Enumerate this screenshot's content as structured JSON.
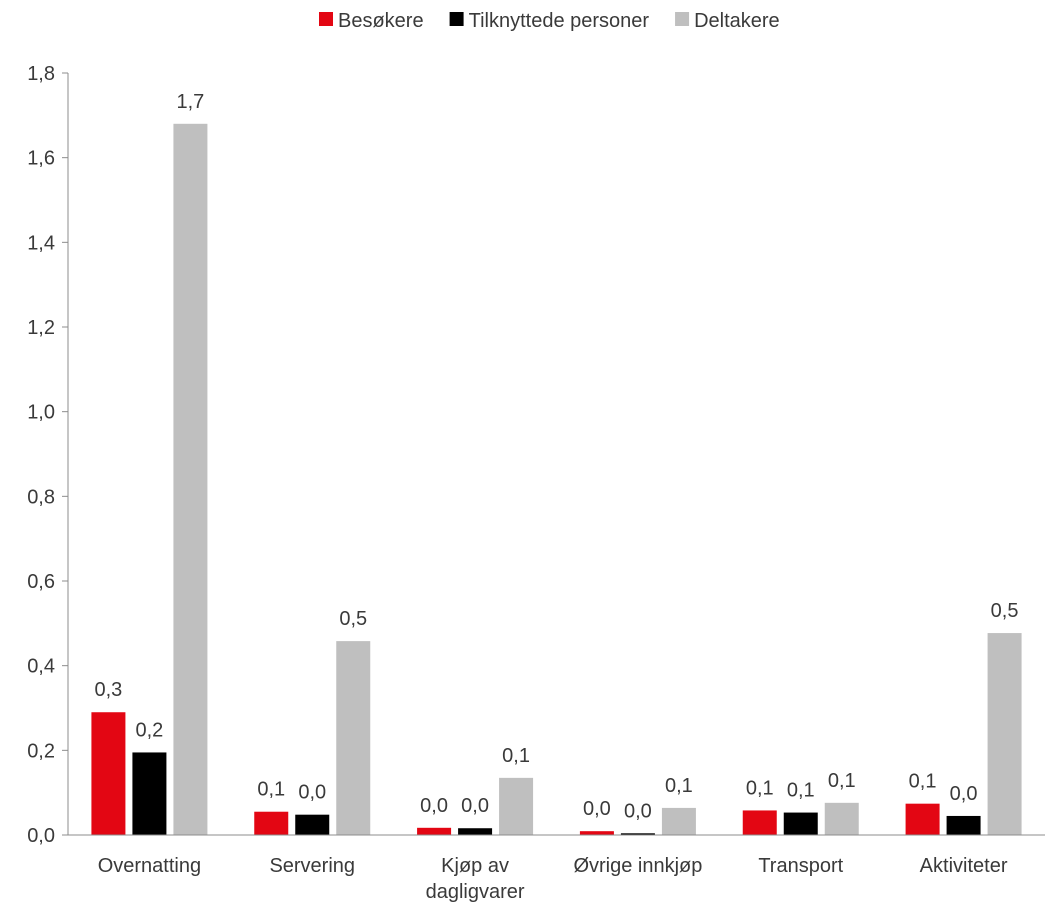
{
  "chart_data": {
    "type": "bar",
    "categories": [
      [
        "Overnatting"
      ],
      [
        "Servering"
      ],
      [
        "Kjøp av",
        "dagligvarer"
      ],
      [
        "Øvrige innkjøp"
      ],
      [
        "Transport"
      ],
      [
        "Aktiviteter"
      ]
    ],
    "series": [
      {
        "name": "Besøkere",
        "color": "#e30613",
        "values": [
          0.29,
          0.055,
          0.017,
          0.009,
          0.058,
          0.074
        ],
        "labels": [
          "0,3",
          "0,1",
          "0,0",
          "0,0",
          "0,1",
          "0,1"
        ]
      },
      {
        "name": "Tilknyttede personer",
        "color": "#000000",
        "values": [
          0.195,
          0.048,
          0.016,
          0.004,
          0.053,
          0.045
        ],
        "labels": [
          "0,2",
          "0,0",
          "0,0",
          "0,0",
          "0,1",
          "0,0"
        ]
      },
      {
        "name": "Deltakere",
        "color": "#bfbfbf",
        "values": [
          1.68,
          0.458,
          0.135,
          0.064,
          0.076,
          0.477
        ],
        "labels": [
          "1,7",
          "0,5",
          "0,1",
          "0,1",
          "0,1",
          "0,5"
        ]
      }
    ],
    "ylim": [
      0,
      1.8
    ],
    "yticks": [
      "0,0",
      "0,2",
      "0,4",
      "0,6",
      "0,8",
      "1,0",
      "1,2",
      "1,4",
      "1,6",
      "1,8"
    ],
    "legend_position": "top",
    "grid": false
  }
}
